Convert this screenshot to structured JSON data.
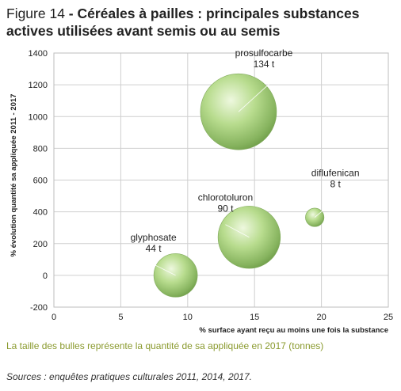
{
  "title": {
    "prefix": "Figure 14",
    "separator": " - ",
    "bold": "Céréales à pailles : principales substances actives utilisées avant semis ou au semis"
  },
  "chart_data": {
    "type": "scatter",
    "bubble": true,
    "xlabel": "% surface ayant reçu au moins une fois la substance",
    "ylabel": "% évolution quantité sa appliquée 2011 - 2017",
    "xlim": [
      0,
      25
    ],
    "ylim": [
      -200,
      1400
    ],
    "xticks": [
      0,
      5,
      10,
      15,
      20,
      25
    ],
    "yticks": [
      -200,
      0,
      200,
      400,
      600,
      800,
      1000,
      1200,
      1400
    ],
    "grid": true,
    "points": [
      {
        "name": "prosulfocarbe",
        "x": 13.8,
        "y": 1030,
        "size": 134,
        "size_label": "134 t"
      },
      {
        "name": "chlorotoluron",
        "x": 14.6,
        "y": 240,
        "size": 90,
        "size_label": "90 t"
      },
      {
        "name": "glyphosate",
        "x": 9.1,
        "y": 0,
        "size": 44,
        "size_label": "44 t"
      },
      {
        "name": "diflufenican",
        "x": 19.5,
        "y": 365,
        "size": 8,
        "size_label": "8 t"
      }
    ],
    "colors": {
      "bubble_light": "#e6f5cf",
      "bubble_mid": "#a9d47e",
      "bubble_dark": "#6e9c48",
      "grid": "#cfcfcf"
    }
  },
  "note": "La taille des bulles représente la quantité de sa appliquée en 2017 (tonnes)",
  "sources": "Sources : enquêtes pratiques culturales 2011, 2014, 2017."
}
